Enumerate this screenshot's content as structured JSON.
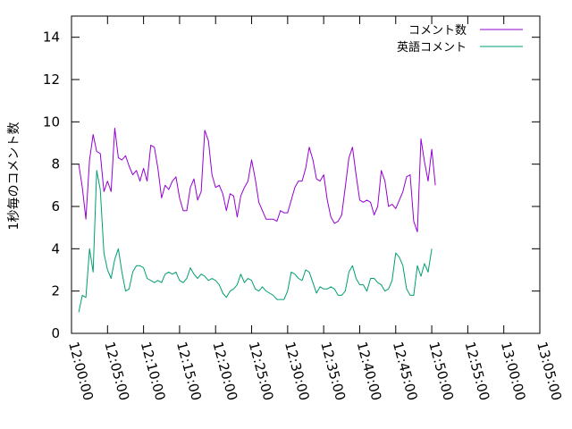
{
  "chart_data": {
    "type": "line",
    "ylabel": "1秒毎のコメント数",
    "xlabel": "",
    "ylim": [
      0,
      15
    ],
    "yticks": [
      0,
      2,
      4,
      6,
      8,
      10,
      12,
      14
    ],
    "xlim_minutes": [
      0,
      65
    ],
    "xticks": [
      "12:00:00",
      "12:05:00",
      "12:10:00",
      "12:15:00",
      "12:20:00",
      "12:25:00",
      "12:30:00",
      "12:35:00",
      "12:40:00",
      "12:45:00",
      "12:50:00",
      "12:55:00",
      "13:00:00",
      "13:05:00"
    ],
    "grid": false,
    "legend_position": "top-right",
    "x_start": "12:00:00",
    "x_step_seconds": 30,
    "series": [
      {
        "name": "コメント数",
        "color": "#9400d3",
        "values": [
          8.0,
          6.9,
          5.4,
          8.2,
          9.4,
          8.6,
          8.5,
          6.7,
          7.2,
          6.7,
          9.7,
          8.3,
          8.2,
          8.4,
          7.9,
          7.5,
          7.7,
          7.2,
          7.8,
          7.2,
          8.9,
          8.8,
          7.8,
          6.4,
          7.0,
          6.8,
          7.2,
          7.4,
          6.4,
          5.8,
          5.8,
          6.9,
          7.3,
          6.3,
          6.7,
          9.6,
          9.1,
          7.5,
          6.9,
          7.0,
          6.6,
          5.8,
          6.6,
          6.5,
          5.5,
          6.5,
          6.9,
          7.2,
          8.2,
          7.3,
          6.2,
          5.8,
          5.4,
          5.4,
          5.4,
          5.3,
          5.8,
          5.7,
          5.7,
          6.3,
          6.9,
          7.2,
          7.2,
          7.8,
          8.8,
          8.2,
          7.3,
          7.2,
          7.5,
          6.3,
          5.5,
          5.2,
          5.3,
          5.6,
          6.9,
          8.3,
          8.8,
          7.5,
          6.3,
          6.2,
          6.3,
          6.2,
          5.6,
          6.0,
          7.7,
          7.2,
          6.0,
          6.1,
          5.9,
          6.3,
          6.7,
          7.4,
          7.5,
          5.3,
          4.8,
          9.2,
          8.1,
          7.2,
          8.7,
          7.0
        ]
      },
      {
        "name": "英語コメント",
        "color": "#009e73",
        "values": [
          1.0,
          1.8,
          1.7,
          4.0,
          2.9,
          7.7,
          6.8,
          3.8,
          3.0,
          2.6,
          3.5,
          4.0,
          2.9,
          2.0,
          2.1,
          2.9,
          3.2,
          3.2,
          3.1,
          2.6,
          2.5,
          2.4,
          2.5,
          2.4,
          2.8,
          2.9,
          2.8,
          2.9,
          2.5,
          2.4,
          2.6,
          3.1,
          2.8,
          2.6,
          2.8,
          2.7,
          2.5,
          2.6,
          2.5,
          2.3,
          1.9,
          1.7,
          2.0,
          2.1,
          2.3,
          2.8,
          2.4,
          2.6,
          2.5,
          2.1,
          2.0,
          2.2,
          2.0,
          1.9,
          1.8,
          1.6,
          1.6,
          1.6,
          2.0,
          2.9,
          2.8,
          2.6,
          2.5,
          3.0,
          2.9,
          2.4,
          1.9,
          2.2,
          2.1,
          2.1,
          2.2,
          2.1,
          1.8,
          1.8,
          2.0,
          2.9,
          3.2,
          2.6,
          2.3,
          2.3,
          2.0,
          2.6,
          2.6,
          2.4,
          2.3,
          2.0,
          2.1,
          2.5,
          3.8,
          3.6,
          3.2,
          2.1,
          1.8,
          1.8,
          3.2,
          2.7,
          3.3,
          2.9,
          4.0
        ]
      }
    ]
  }
}
